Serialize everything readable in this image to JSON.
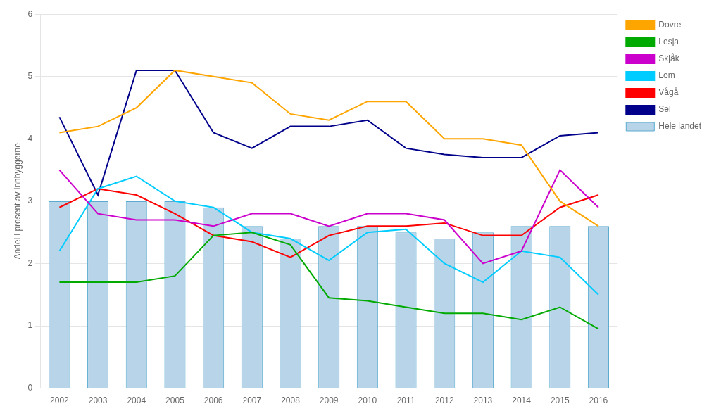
{
  "chart_data": {
    "type": "bar",
    "categories": [
      "2002",
      "2003",
      "2004",
      "2005",
      "2006",
      "2007",
      "2008",
      "2009",
      "2010",
      "2011",
      "2012",
      "2013",
      "2014",
      "2015",
      "2016"
    ],
    "series": [
      {
        "name": "Hele landet",
        "type": "bar",
        "color": "#b8d4e8",
        "values": [
          3.0,
          3.0,
          3.0,
          3.0,
          2.9,
          2.6,
          2.4,
          2.6,
          2.6,
          2.5,
          2.4,
          2.5,
          2.6,
          2.6,
          2.6
        ]
      },
      {
        "name": "Dovre",
        "type": "line",
        "color": "#FFA500",
        "values": [
          4.1,
          4.2,
          4.5,
          5.1,
          5.0,
          4.9,
          4.4,
          4.3,
          4.6,
          4.6,
          4.0,
          4.0,
          3.9,
          3.0,
          2.6
        ]
      },
      {
        "name": "Lesja",
        "type": "line",
        "color": "#00AA00",
        "values": [
          1.7,
          1.7,
          1.7,
          1.8,
          2.45,
          2.5,
          2.3,
          1.45,
          1.4,
          1.3,
          1.2,
          1.2,
          1.1,
          1.3,
          0.95
        ]
      },
      {
        "name": "Skjåk",
        "type": "line",
        "color": "#CC00CC",
        "values": [
          3.5,
          2.8,
          2.7,
          2.7,
          2.6,
          2.8,
          2.8,
          2.6,
          2.8,
          2.8,
          2.7,
          2.0,
          2.2,
          3.5,
          2.9
        ]
      },
      {
        "name": "Lom",
        "type": "line",
        "color": "#00CCFF",
        "values": [
          2.2,
          3.2,
          3.4,
          3.0,
          2.9,
          2.5,
          2.4,
          2.05,
          2.5,
          2.55,
          2.0,
          1.7,
          2.2,
          2.1,
          1.5
        ]
      },
      {
        "name": "Vågå",
        "type": "line",
        "color": "#FF0000",
        "values": [
          2.9,
          3.2,
          3.1,
          2.8,
          2.45,
          2.35,
          2.1,
          2.45,
          2.6,
          2.6,
          2.65,
          2.45,
          2.45,
          2.9,
          3.1
        ]
      },
      {
        "name": "Sel",
        "type": "line",
        "color": "#00008B",
        "values": [
          4.35,
          3.1,
          5.1,
          5.1,
          4.1,
          3.85,
          4.2,
          4.2,
          4.3,
          3.85,
          3.75,
          3.7,
          3.7,
          4.05,
          4.1
        ]
      }
    ],
    "y_label": "Andel i prosent av innbyggerne",
    "ylim": [
      0,
      6
    ],
    "yticks": [
      0,
      1,
      2,
      3,
      4,
      5,
      6
    ],
    "grid": true,
    "legend": "right"
  }
}
